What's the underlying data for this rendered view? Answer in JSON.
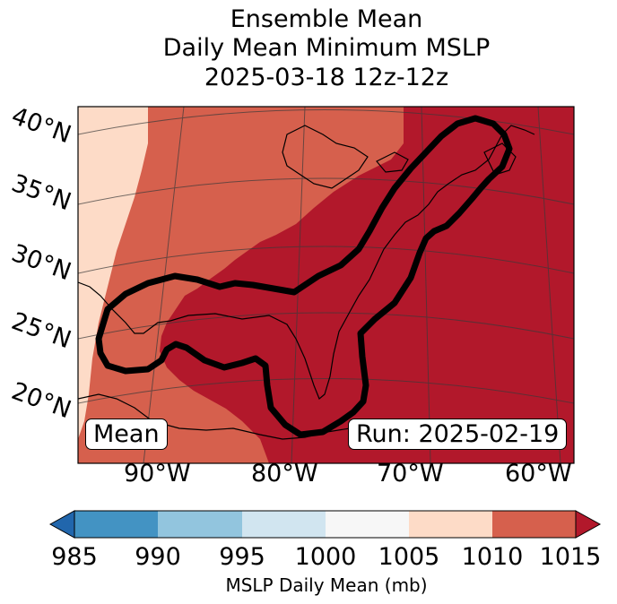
{
  "title": {
    "line1": "Ensemble Mean",
    "line2": "Daily Mean Minimum MSLP",
    "line3": "2025-03-18 12z-12z"
  },
  "map": {
    "lat_labels": [
      "40°N",
      "35°N",
      "30°N",
      "25°N",
      "20°N"
    ],
    "lon_labels": [
      "90°W",
      "80°W",
      "70°W",
      "60°W"
    ],
    "left_box": "Mean",
    "right_box": "Run: 2025-02-19",
    "fill_colors": {
      "1005-1010": "#fddbc7",
      "1010-1015": "#d6604d",
      "above-1015": "#b2182b"
    },
    "contour_color": "#000000"
  },
  "colorbar": {
    "ticks": [
      "985",
      "990",
      "995",
      "1000",
      "1005",
      "1010",
      "1015"
    ],
    "label": "MSLP Daily Mean (mb)",
    "colors": [
      "#2166ac",
      "#4393c3",
      "#92c5de",
      "#d1e5f0",
      "#f7f7f7",
      "#fddbc7",
      "#d6604d",
      "#b2182b"
    ]
  }
}
